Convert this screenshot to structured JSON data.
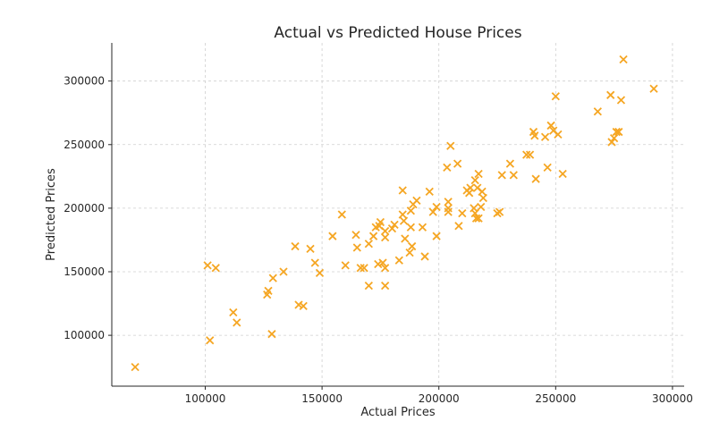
{
  "chart_data": {
    "type": "scatter",
    "title": "Actual vs Predicted House Prices",
    "xlabel": "Actual Prices",
    "ylabel": "Predicted Prices",
    "xlim": [
      60000,
      305000
    ],
    "ylim": [
      60000,
      330000
    ],
    "xticks": [
      100000,
      150000,
      200000,
      250000,
      300000
    ],
    "yticks": [
      100000,
      150000,
      200000,
      250000,
      300000
    ],
    "xtick_labels": [
      "100000",
      "150000",
      "200000",
      "250000",
      "300000"
    ],
    "ytick_labels": [
      "100000",
      "150000",
      "200000",
      "250000",
      "300000"
    ],
    "grid": true,
    "marker": "x",
    "color": "#f5a623",
    "points": [
      [
        70000,
        75000
      ],
      [
        101000,
        155000
      ],
      [
        104500,
        153000
      ],
      [
        102000,
        96000
      ],
      [
        112000,
        118000
      ],
      [
        113500,
        110000
      ],
      [
        126500,
        132000
      ],
      [
        127000,
        135000
      ],
      [
        129000,
        145000
      ],
      [
        128500,
        101000
      ],
      [
        133500,
        150000
      ],
      [
        138500,
        170000
      ],
      [
        140000,
        124000
      ],
      [
        142000,
        123000
      ],
      [
        145000,
        168000
      ],
      [
        147000,
        157000
      ],
      [
        149000,
        149000
      ],
      [
        154500,
        178000
      ],
      [
        158500,
        195000
      ],
      [
        160000,
        155000
      ],
      [
        164500,
        179000
      ],
      [
        165000,
        169000
      ],
      [
        166500,
        153000
      ],
      [
        168000,
        153000
      ],
      [
        170000,
        172000
      ],
      [
        170000,
        139000
      ],
      [
        172000,
        178000
      ],
      [
        173000,
        185000
      ],
      [
        174000,
        156000
      ],
      [
        174500,
        186000
      ],
      [
        175000,
        189000
      ],
      [
        176000,
        157000
      ],
      [
        177000,
        182000
      ],
      [
        177000,
        177000
      ],
      [
        177000,
        139000
      ],
      [
        177000,
        153000
      ],
      [
        180000,
        184000
      ],
      [
        181000,
        187000
      ],
      [
        183000,
        159000
      ],
      [
        184500,
        214000
      ],
      [
        184500,
        195000
      ],
      [
        185000,
        190000
      ],
      [
        185500,
        176000
      ],
      [
        187500,
        165000
      ],
      [
        188000,
        185000
      ],
      [
        188000,
        198000
      ],
      [
        189000,
        203000
      ],
      [
        188500,
        170000
      ],
      [
        190500,
        206000
      ],
      [
        193000,
        185000
      ],
      [
        194000,
        162000
      ],
      [
        196000,
        213000
      ],
      [
        197500,
        197000
      ],
      [
        199000,
        178000
      ],
      [
        199000,
        201000
      ],
      [
        203500,
        232000
      ],
      [
        204000,
        205000
      ],
      [
        204000,
        200000
      ],
      [
        204000,
        197000
      ],
      [
        205000,
        249000
      ],
      [
        208000,
        235000
      ],
      [
        208500,
        186000
      ],
      [
        210000,
        196000
      ],
      [
        212000,
        214000
      ],
      [
        213500,
        216000
      ],
      [
        213000,
        212000
      ],
      [
        215000,
        200000
      ],
      [
        215500,
        196000
      ],
      [
        215500,
        222000
      ],
      [
        216000,
        192000
      ],
      [
        216500,
        216000
      ],
      [
        217000,
        192000
      ],
      [
        217000,
        227000
      ],
      [
        218000,
        201000
      ],
      [
        218500,
        213000
      ],
      [
        219000,
        208000
      ],
      [
        225000,
        196000
      ],
      [
        226000,
        197000
      ],
      [
        227000,
        226000
      ],
      [
        230500,
        235000
      ],
      [
        232000,
        226000
      ],
      [
        237500,
        242000
      ],
      [
        239000,
        242000
      ],
      [
        240500,
        260000
      ],
      [
        241000,
        257000
      ],
      [
        241500,
        223000
      ],
      [
        245500,
        256000
      ],
      [
        246500,
        232000
      ],
      [
        248000,
        265000
      ],
      [
        249000,
        261000
      ],
      [
        250000,
        288000
      ],
      [
        251000,
        258000
      ],
      [
        253000,
        227000
      ],
      [
        268000,
        276000
      ],
      [
        273500,
        289000
      ],
      [
        274000,
        252000
      ],
      [
        275000,
        255000
      ],
      [
        276000,
        260000
      ],
      [
        277000,
        260000
      ],
      [
        278000,
        285000
      ],
      [
        279000,
        317000
      ],
      [
        292000,
        294000
      ]
    ]
  }
}
